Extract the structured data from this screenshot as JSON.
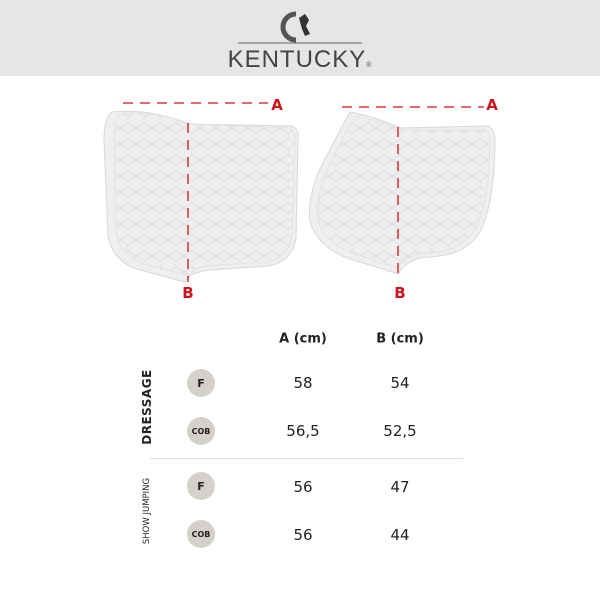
{
  "brand": {
    "name": "KENTUCKY",
    "registered": "®"
  },
  "diagram": {
    "label_a": "A",
    "label_b": "B",
    "accent": "#d0121b"
  },
  "table": {
    "headers": [
      "A (cm)",
      "B (cm)"
    ],
    "groups": [
      {
        "name": "DRESSAGE",
        "rows": [
          {
            "size": "F",
            "a": "58",
            "b": "54"
          },
          {
            "size": "COB",
            "a": "56,5",
            "b": "52,5"
          }
        ]
      },
      {
        "name": "SHOW JUMPING",
        "rows": [
          {
            "size": "F",
            "a": "56",
            "b": "47"
          },
          {
            "size": "COB",
            "a": "56",
            "b": "44"
          }
        ]
      }
    ]
  }
}
